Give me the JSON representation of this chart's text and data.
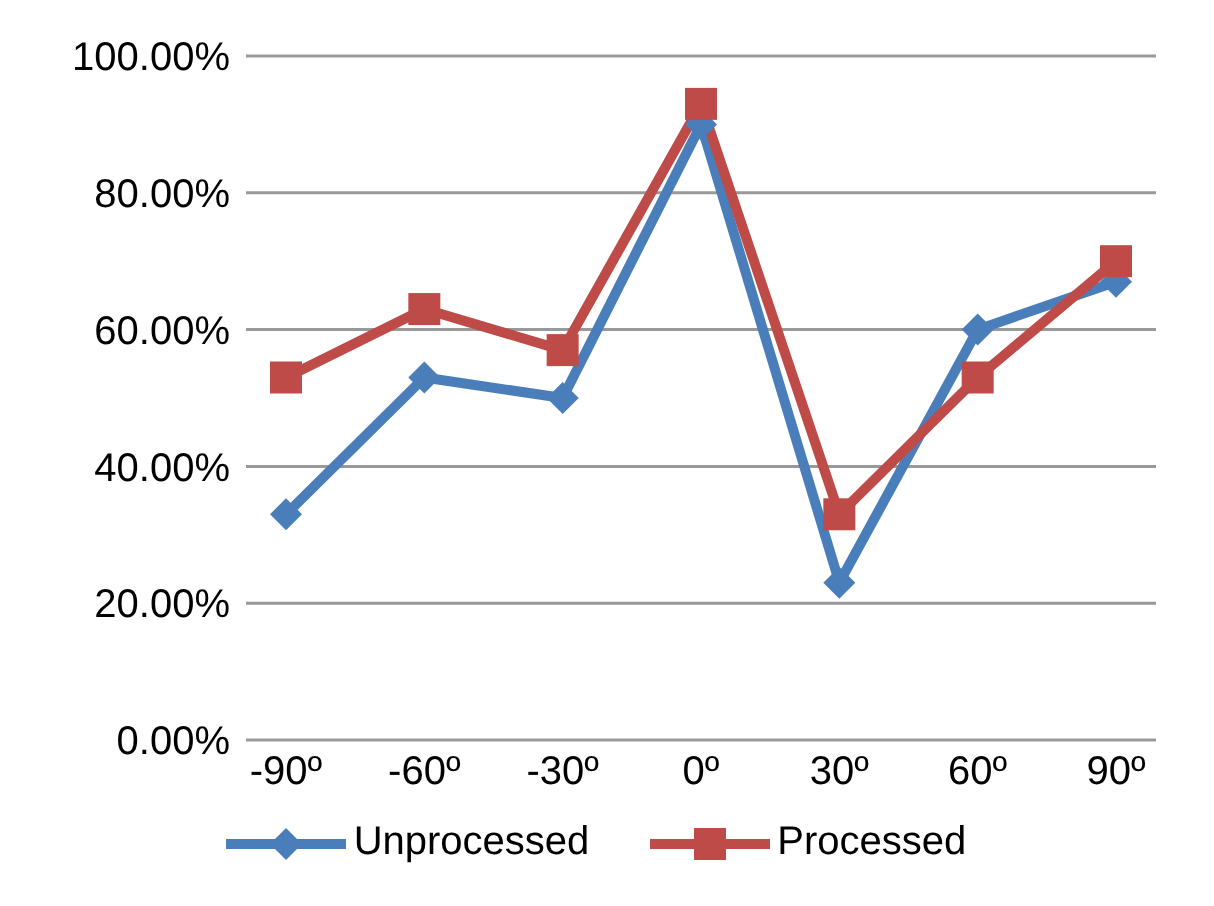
{
  "chart_data": {
    "type": "line",
    "categories": [
      "-90º",
      "-60º",
      "-30º",
      "0º",
      "30º",
      "60º",
      "90º"
    ],
    "series": [
      {
        "name": "Unprocessed",
        "color": "#4a7ebb",
        "marker": "diamond",
        "values": [
          33,
          53,
          50,
          90,
          23,
          60,
          67
        ]
      },
      {
        "name": "Processed",
        "color": "#be4b48",
        "marker": "square",
        "values": [
          53,
          63,
          57,
          93,
          33,
          53,
          70
        ]
      }
    ],
    "ylim": [
      0,
      100
    ],
    "yticks": [
      {
        "value": 0,
        "label": "0.00%"
      },
      {
        "value": 20,
        "label": "20.00%"
      },
      {
        "value": 40,
        "label": "40.00%"
      },
      {
        "value": 60,
        "label": "60.00%"
      },
      {
        "value": 80,
        "label": "80.00%"
      },
      {
        "value": 100,
        "label": "100.00%"
      }
    ],
    "grid": "y",
    "legend": "bottom"
  }
}
